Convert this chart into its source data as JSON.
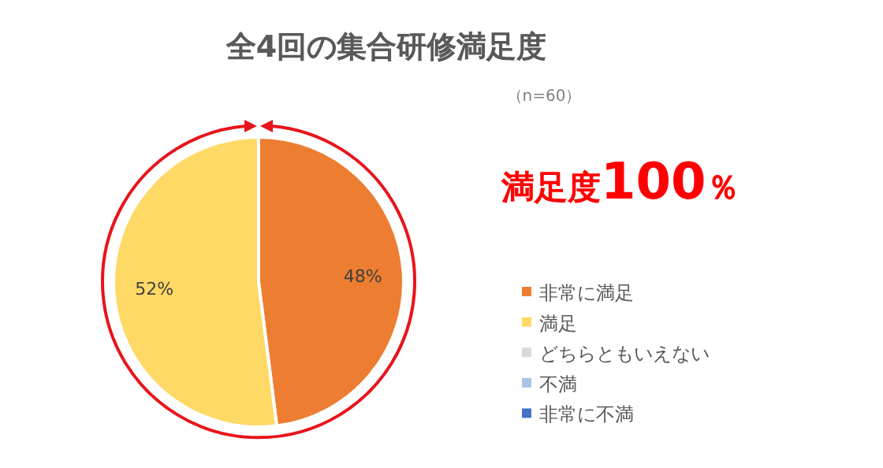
{
  "chart_data": {
    "type": "pie",
    "title": "全4回の集合研修満足度",
    "subtitle": "（n=60）",
    "categories": [
      "非常に満足",
      "満足",
      "どちらともいえない",
      "不満",
      "非常に不満"
    ],
    "values": [
      48,
      52,
      0,
      0,
      0
    ],
    "colors": [
      "#ed7d31",
      "#ffd966",
      "#d9d9d9",
      "#a9c4e8",
      "#4472c4"
    ],
    "value_labels": [
      "48%",
      "52%",
      null,
      null,
      null
    ],
    "legend": "right",
    "annotations": [
      "満足度**100**％"
    ]
  }
}
